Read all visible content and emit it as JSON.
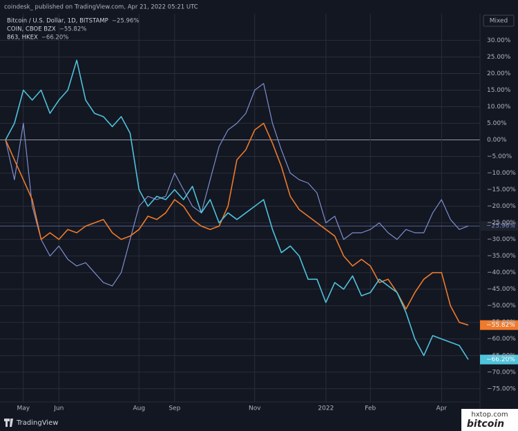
{
  "chart_data": {
    "type": "line",
    "title": "coindesk_ published on TradingView.com, Apr 21, 2022 05:21 UTC",
    "scale_mode": "Mixed",
    "footer": "TradingView",
    "watermark": [
      "hxtop.com",
      "bitcoin"
    ],
    "categories": [
      null,
      null,
      "May",
      null,
      null,
      null,
      "Jun",
      null,
      null,
      null,
      null,
      null,
      null,
      null,
      null,
      "Aug",
      null,
      null,
      null,
      "Sep",
      null,
      null,
      null,
      null,
      null,
      null,
      null,
      null,
      "Nov",
      null,
      null,
      null,
      null,
      null,
      null,
      null,
      "2022",
      null,
      null,
      null,
      null,
      "Feb",
      null,
      null,
      null,
      null,
      null,
      null,
      null,
      "Apr",
      null,
      null,
      null
    ],
    "series": [
      {
        "name": "Bitcoin / U.S. Dollar, 1D, BITSTAMP",
        "color": "#7f8fd0",
        "values": [
          0,
          -12,
          5,
          -20,
          -30,
          -35,
          -32,
          -36,
          -38,
          -37,
          -40,
          -43,
          -44,
          -40,
          -30,
          -20,
          -17,
          -18,
          -17,
          -10,
          -15,
          -20,
          -22,
          -12,
          -2,
          3,
          5,
          8,
          15,
          17,
          5,
          -3,
          -10,
          -12,
          -13,
          -16,
          -25,
          -23,
          -30,
          -28,
          -28,
          -27,
          -25,
          -28,
          -30,
          -27,
          -28,
          -28,
          -22,
          -18,
          -24,
          -27,
          -25.96
        ],
        "value_labels": [
          null,
          null,
          null,
          null,
          null,
          null,
          null,
          null,
          null,
          null,
          null,
          null,
          null,
          null,
          null,
          null,
          null,
          null,
          null,
          null,
          null,
          null,
          null,
          null,
          null,
          null,
          null,
          null,
          null,
          null,
          null,
          null,
          null,
          null,
          null,
          null,
          null,
          null,
          null,
          null,
          null,
          null,
          null,
          null,
          null,
          null,
          null,
          null,
          null,
          null,
          null,
          null,
          "−25.96%"
        ]
      },
      {
        "name": "COIN, CBOE BZX",
        "color": "#f07a2b",
        "values": [
          0,
          -6,
          -12,
          -18,
          -30,
          -28,
          -30,
          -27,
          -28,
          -26,
          -25,
          -24,
          -28,
          -30,
          -29,
          -27,
          -23,
          -24,
          -22,
          -18,
          -20,
          -24,
          -26,
          -27,
          -26,
          -20,
          -6,
          -3,
          3,
          5,
          -1,
          -8,
          -17,
          -21,
          -23,
          -25,
          -27,
          -29,
          -35,
          -38,
          -36,
          -38,
          -43,
          -42,
          -46,
          -51,
          -46,
          -42,
          -40,
          -40,
          -50,
          -55,
          -55.82
        ],
        "value_labels": [
          null,
          null,
          null,
          null,
          null,
          null,
          null,
          null,
          null,
          null,
          null,
          null,
          null,
          null,
          null,
          null,
          null,
          null,
          null,
          null,
          null,
          null,
          null,
          null,
          null,
          null,
          null,
          null,
          null,
          null,
          null,
          null,
          null,
          null,
          null,
          null,
          null,
          null,
          null,
          null,
          null,
          null,
          null,
          null,
          null,
          null,
          null,
          null,
          null,
          null,
          null,
          null,
          "−55.82%"
        ]
      },
      {
        "name": "863, HKEX",
        "color": "#4fc3dc",
        "values": [
          0,
          5,
          15,
          12,
          15,
          8,
          12,
          15,
          24,
          12,
          8,
          7,
          4,
          7,
          2,
          -15,
          -20,
          -17,
          -18,
          -15,
          -18,
          -14,
          -22,
          -18,
          -25,
          -22,
          -24,
          -22,
          -20,
          -18,
          -27,
          -34,
          -32,
          -35,
          -42,
          -42,
          -49,
          -43,
          -45,
          -41,
          -47,
          -46,
          -42,
          -44,
          -46,
          -52,
          -60,
          -65,
          -59,
          -60,
          -61,
          -62,
          -66.2
        ],
        "value_labels": [
          null,
          null,
          null,
          null,
          null,
          null,
          null,
          null,
          null,
          null,
          null,
          null,
          null,
          null,
          null,
          null,
          null,
          null,
          null,
          null,
          null,
          null,
          null,
          null,
          null,
          null,
          null,
          null,
          null,
          null,
          null,
          null,
          null,
          null,
          null,
          null,
          null,
          null,
          null,
          null,
          null,
          null,
          null,
          null,
          null,
          null,
          null,
          null,
          null,
          null,
          null,
          null,
          "−66.20%"
        ]
      }
    ],
    "ylim": [
      -79,
      38
    ],
    "yticks": [
      {
        "value": 30,
        "label": "30.00%"
      },
      {
        "value": 25,
        "label": "25.00%"
      },
      {
        "value": 20,
        "label": "20.00%"
      },
      {
        "value": 15,
        "label": "15.00%"
      },
      {
        "value": 10,
        "label": "10.00%"
      },
      {
        "value": 5,
        "label": "5.00%"
      },
      {
        "value": 0,
        "label": "0.00%"
      },
      {
        "value": -5,
        "label": "−5.00%"
      },
      {
        "value": -10,
        "label": "−10.00%"
      },
      {
        "value": -15,
        "label": "−15.00%"
      },
      {
        "value": -20,
        "label": "−20.00%"
      },
      {
        "value": -25,
        "label": "−25.00%"
      },
      {
        "value": -30,
        "label": "−30.00%"
      },
      {
        "value": -35,
        "label": "−35.00%"
      },
      {
        "value": -40,
        "label": "−40.00%"
      },
      {
        "value": -45,
        "label": "−45.00%"
      },
      {
        "value": -50,
        "label": "−50.00%"
      },
      {
        "value": -55,
        "label": "−55.00%"
      },
      {
        "value": -60,
        "label": "−60.00%"
      },
      {
        "value": -65,
        "label": "−65.00%"
      },
      {
        "value": -70,
        "label": "−70.00%"
      },
      {
        "value": -75,
        "label": "−75.00%"
      }
    ],
    "grid": true
  }
}
